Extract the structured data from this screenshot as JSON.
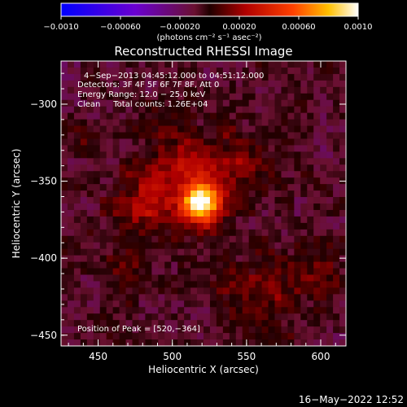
{
  "chart_data": {
    "type": "heatmap",
    "title": "Reconstructed RHESSI Image",
    "xlabel": "Heliocentric X (arcsec)",
    "ylabel": "Heliocentric Y (arcsec)",
    "xlim": [
      425,
      617
    ],
    "ylim": [
      -457,
      -272
    ],
    "x_ticks": [
      450,
      500,
      550,
      600
    ],
    "y_ticks": [
      -300,
      -350,
      -400,
      -450
    ],
    "x_tick_labels": [
      "450",
      "500",
      "550",
      "600"
    ],
    "y_tick_labels": [
      "−300",
      "−350",
      "−400",
      "−450"
    ],
    "colorbar": {
      "min": -0.001,
      "max": 0.001,
      "tick_labels": [
        "−0.0010",
        "−0.00060",
        "−0.00020",
        "0.00020",
        "0.00060",
        "0.0010"
      ],
      "ticks": [
        -0.001,
        -0.0006,
        -0.0002,
        0.0002,
        0.0006,
        0.001
      ],
      "unit_label": "(photons cm⁻² s⁻¹ asec⁻²)"
    },
    "annotations": [
      "4−Sep−2013 04:45:12.000 to 04:51:12.000",
      "Detectors: 3F 4F 5F 6F 7F 8F, Att 0",
      "Energy Range: 12.0 − 25.0 keV",
      "Clean     Total counts: 1.26E+04"
    ],
    "peak_label": "Position of Peak = [520,−364]",
    "peak": {
      "x": 520,
      "y": -364
    },
    "timestamp": "16−May−2022 12:52",
    "sources": [
      {
        "x": 520,
        "y": -364,
        "amplitude": 0.00105,
        "sigma": 8
      },
      {
        "x": 505,
        "y": -350,
        "amplitude": 0.00035,
        "sigma": 22
      },
      {
        "x": 475,
        "y": -370,
        "amplitude": 0.0002,
        "sigma": 14
      },
      {
        "x": 545,
        "y": -335,
        "amplitude": 0.00018,
        "sigma": 14
      },
      {
        "x": 560,
        "y": -425,
        "amplitude": 0.00022,
        "sigma": 20
      },
      {
        "x": 470,
        "y": -408,
        "amplitude": 0.00012,
        "sigma": 10
      },
      {
        "x": 435,
        "y": -318,
        "amplitude": 0.00012,
        "sigma": 10
      },
      {
        "x": 600,
        "y": -410,
        "amplitude": 0.00014,
        "sigma": 12
      }
    ],
    "background": -8e-05
  }
}
